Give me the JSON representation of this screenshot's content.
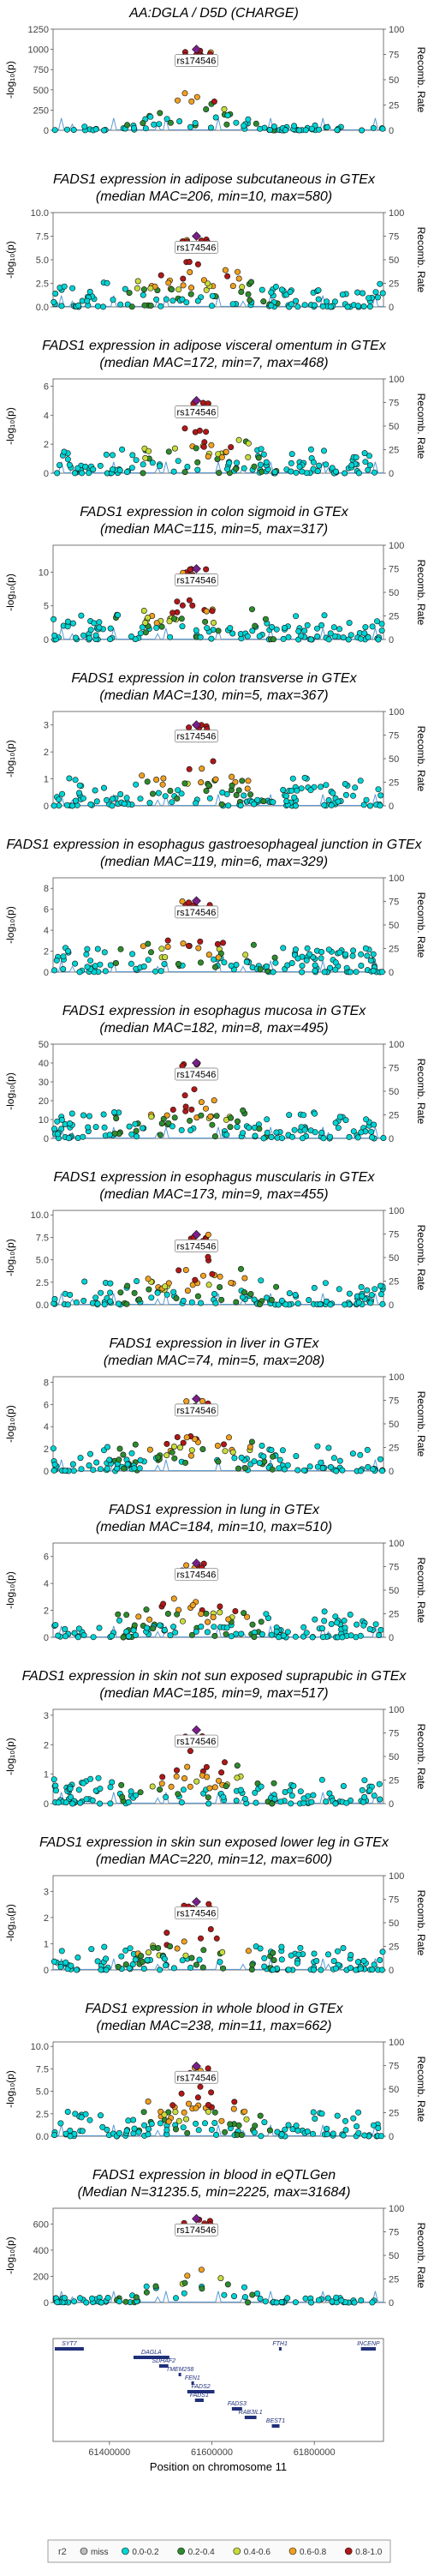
{
  "chart_data": {
    "type": "scatter",
    "x_axis": {
      "label": "Position on chromosome 11",
      "ticks": [
        61400000,
        61600000,
        61800000
      ],
      "range": [
        61290000,
        61935000
      ]
    },
    "y_label_left": "-log₁₀(p)",
    "y_label_right": "Recomb. Rate",
    "recomb_ticks": [
      0,
      25,
      50,
      75,
      100
    ],
    "lead_snp": "rs174546",
    "lead_position": 61569830,
    "colors": {
      "miss": "#bdbdbd",
      "r2_0.0-0.2": "#00d4d4",
      "r2_0.2-0.4": "#2e8b2e",
      "r2_0.4-0.6": "#c8dc3c",
      "r2_0.6-0.8": "#f0a020",
      "r2_0.8-1.0": "#b01818",
      "lead": "#7a1f8a",
      "recomb_line": "#5b9bd5"
    },
    "panels": [
      {
        "title": "AA:DGLA / D5D (CHARGE)",
        "subtitle": "",
        "ymax": 1250,
        "yticks": [
          0,
          250,
          500,
          750,
          1000,
          1250
        ],
        "peak": 1000,
        "top_hit_count": 12
      },
      {
        "title": "FADS1 expression in adipose subcutaneous in GTEx",
        "subtitle": "(median MAC=206, min=10, max=580)",
        "ymax": 10,
        "yticks": [
          0.0,
          2.5,
          5.0,
          7.5,
          10.0
        ],
        "peak": 7.5,
        "top_hit_count": 10
      },
      {
        "title": "FADS1 expression in adipose visceral omentum in GTEx",
        "subtitle": "(median MAC=172, min=7, max=468)",
        "ymax": 6.5,
        "yticks": [
          0,
          2,
          4,
          6
        ],
        "peak": 5.0,
        "top_hit_count": 10
      },
      {
        "title": "FADS1 expression in colon sigmoid in GTEx",
        "subtitle": "(median MAC=115, min=5, max=317)",
        "ymax": 14,
        "yticks": [
          0,
          5,
          10
        ],
        "peak": 10.5,
        "top_hit_count": 10
      },
      {
        "title": "FADS1 expression in colon transverse in GTEx",
        "subtitle": "(median MAC=130, min=5, max=367)",
        "ymax": 3.5,
        "yticks": [
          0,
          1,
          2,
          3
        ],
        "peak": 3.0,
        "top_hit_count": 8
      },
      {
        "title": "FADS1 expression in esophagus gastroesophageal junction in GTEx",
        "subtitle": "(median MAC=119, min=6, max=329)",
        "ymax": 9,
        "yticks": [
          0,
          2,
          4,
          6,
          8
        ],
        "peak": 6.8,
        "top_hit_count": 10
      },
      {
        "title": "FADS1 expression in esophagus mucosa in GTEx",
        "subtitle": "(median MAC=182, min=8, max=495)",
        "ymax": 50,
        "yticks": [
          0,
          10,
          20,
          30,
          40,
          50
        ],
        "peak": 40,
        "top_hit_count": 12
      },
      {
        "title": "FADS1 expression in esophagus muscularis in GTEx",
        "subtitle": "(median MAC=173, min=9, max=455)",
        "ymax": 10.5,
        "yticks": [
          0.0,
          2.5,
          5.0,
          7.5,
          10.0
        ],
        "peak": 7.8,
        "top_hit_count": 10
      },
      {
        "title": "FADS1 expression in liver in GTEx",
        "subtitle": "(median MAC=74, min=5, max=208)",
        "ymax": 8.5,
        "yticks": [
          0,
          2,
          4,
          6,
          8
        ],
        "peak": 6.5,
        "top_hit_count": 8
      },
      {
        "title": "FADS1 expression in lung in GTEx",
        "subtitle": "(median MAC=184, min=10, max=510)",
        "ymax": 7,
        "yticks": [
          0,
          2,
          4,
          6
        ],
        "peak": 5.5,
        "top_hit_count": 10
      },
      {
        "title": "FADS1 expression in skin not sun exposed suprapubic in GTEx",
        "subtitle": "(median MAC=185, min=9, max=517)",
        "ymax": 3.2,
        "yticks": [
          0,
          1,
          2,
          3
        ],
        "peak": 2.5,
        "top_hit_count": 8
      },
      {
        "title": "FADS1 expression in skin sun exposed lower leg in GTEx",
        "subtitle": "(median MAC=220, min=12, max=600)",
        "ymax": 3.6,
        "yticks": [
          0,
          1,
          2,
          3
        ],
        "peak": 2.6,
        "top_hit_count": 8
      },
      {
        "title": "FADS1 expression in whole blood in GTEx",
        "subtitle": "(median MAC=238, min=11, max=662)",
        "ymax": 10.5,
        "yticks": [
          0.0,
          2.5,
          5.0,
          7.5,
          10.0
        ],
        "peak": 7.8,
        "top_hit_count": 10
      },
      {
        "title": "FADS1 expression in blood in eQTLGen",
        "subtitle": "(Median N=31235.5, min=2225, max=31684)",
        "ymax": 720,
        "yticks": [
          0,
          200,
          400,
          600
        ],
        "peak": 640,
        "top_hit_count": 10
      }
    ],
    "genes": [
      {
        "name": "SYT7",
        "start": 61282000,
        "end": 61350000,
        "row": 0
      },
      {
        "name": "FTH1",
        "start": 61731000,
        "end": 61735000,
        "row": 0
      },
      {
        "name": "INCENP",
        "start": 61891000,
        "end": 61920000,
        "row": 0
      },
      {
        "name": "DAGLA",
        "start": 61447000,
        "end": 61517000,
        "row": 1
      },
      {
        "name": "SDHAF2",
        "start": 61497000,
        "end": 61515000,
        "row": 2
      },
      {
        "name": "TMEM258",
        "start": 61535000,
        "end": 61540000,
        "row": 3
      },
      {
        "name": "FEN1",
        "start": 61560000,
        "end": 61564000,
        "row": 4
      },
      {
        "name": "FADS2",
        "start": 61552000,
        "end": 61605000,
        "row": 5
      },
      {
        "name": "FADS1",
        "start": 61567000,
        "end": 61584000,
        "row": 6
      },
      {
        "name": "FADS3",
        "start": 61639000,
        "end": 61659000,
        "row": 7
      },
      {
        "name": "RAB3IL1",
        "start": 61664000,
        "end": 61687000,
        "row": 8
      },
      {
        "name": "BEST1",
        "start": 61717000,
        "end": 61732000,
        "row": 9
      }
    ],
    "legend": {
      "title": "r2",
      "items": [
        {
          "label": "miss",
          "color": "#bdbdbd"
        },
        {
          "label": "0.0-0.2",
          "color": "#00d4d4"
        },
        {
          "label": "0.2-0.4",
          "color": "#2e8b2e"
        },
        {
          "label": "0.4-0.6",
          "color": "#c8dc3c"
        },
        {
          "label": "0.6-0.8",
          "color": "#f0a020"
        },
        {
          "label": "0.8-1.0",
          "color": "#b01818"
        }
      ]
    }
  }
}
